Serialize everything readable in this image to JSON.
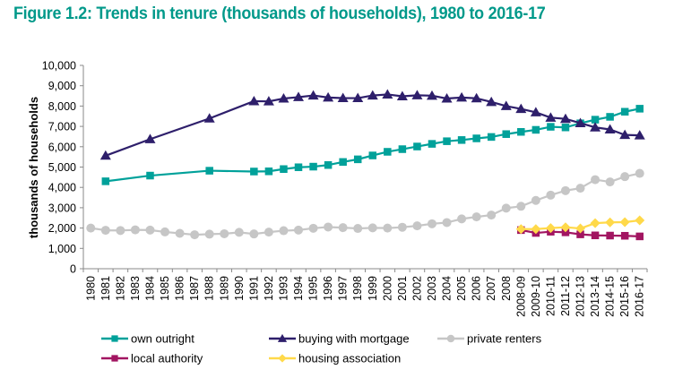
{
  "chart_data": {
    "type": "line",
    "title": "Figure 1.2: Trends in tenure (thousands of households), 1980 to 2016-17",
    "xlabel": "",
    "ylabel": "thousands of households",
    "ylim": [
      0,
      10000
    ],
    "yticks": [
      0,
      1000,
      2000,
      3000,
      4000,
      5000,
      6000,
      7000,
      8000,
      9000,
      10000
    ],
    "ytick_labels": [
      "0",
      "1,000",
      "2,000",
      "3,000",
      "4,000",
      "5,000",
      "6,000",
      "7,000",
      "8,000",
      "9,000",
      "10,000"
    ],
    "grid": false,
    "legend_position": "bottom",
    "categories": [
      "1980",
      "1981",
      "1982",
      "1983",
      "1984",
      "1985",
      "1986",
      "1987",
      "1988",
      "1989",
      "1990",
      "1991",
      "1992",
      "1993",
      "1994",
      "1995",
      "1996",
      "1997",
      "1998",
      "1999",
      "2000",
      "2001",
      "2002",
      "2003",
      "2004",
      "2005",
      "2006",
      "2007",
      "2008",
      "2008-09",
      "2009-10",
      "2010-11",
      "2011-12",
      "2012-13",
      "2013-14",
      "2014-15",
      "2015-16",
      "2016-17"
    ],
    "series": [
      {
        "name": "own outright",
        "color": "#00a19a",
        "marker": "square",
        "values": [
          null,
          4300,
          null,
          null,
          4580,
          null,
          null,
          null,
          4820,
          null,
          null,
          4780,
          4790,
          4900,
          4990,
          5020,
          5100,
          5250,
          5380,
          5570,
          5750,
          5880,
          6010,
          6140,
          6270,
          6330,
          6410,
          6480,
          6620,
          6730,
          6830,
          6980,
          6950,
          7150,
          7330,
          7470,
          7720,
          7870
        ]
      },
      {
        "name": "buying with mortgage",
        "color": "#2e1f6b",
        "marker": "triangle",
        "values": [
          null,
          5560,
          null,
          null,
          6370,
          null,
          null,
          null,
          7390,
          null,
          null,
          8240,
          8230,
          8370,
          8440,
          8520,
          8420,
          8390,
          8390,
          8520,
          8570,
          8480,
          8530,
          8510,
          8370,
          8420,
          8380,
          8200,
          8000,
          7860,
          7690,
          7430,
          7370,
          7160,
          6950,
          6850,
          6580,
          6560
        ]
      },
      {
        "name": "private renters",
        "color": "#c6c6c6",
        "marker": "circle",
        "values": [
          2000,
          1890,
          1880,
          1910,
          1900,
          1810,
          1740,
          1670,
          1700,
          1720,
          1790,
          1710,
          1800,
          1870,
          1900,
          1990,
          2050,
          2020,
          1980,
          2010,
          2000,
          2040,
          2110,
          2210,
          2270,
          2450,
          2550,
          2640,
          2980,
          3070,
          3360,
          3620,
          3840,
          3960,
          4380,
          4270,
          4530,
          4690
        ]
      },
      {
        "name": "local authority",
        "color": "#a21561",
        "marker": "square",
        "values": [
          null,
          null,
          null,
          null,
          null,
          null,
          null,
          null,
          null,
          null,
          null,
          null,
          null,
          null,
          null,
          null,
          null,
          null,
          null,
          null,
          null,
          null,
          null,
          null,
          null,
          null,
          null,
          null,
          null,
          1900,
          1760,
          1820,
          1790,
          1690,
          1640,
          1630,
          1620,
          1590
        ]
      },
      {
        "name": "housing association",
        "color": "#ffd94a",
        "marker": "diamond",
        "values": [
          null,
          null,
          null,
          null,
          null,
          null,
          null,
          null,
          null,
          null,
          null,
          null,
          null,
          null,
          null,
          null,
          null,
          null,
          null,
          null,
          null,
          null,
          null,
          null,
          null,
          null,
          null,
          null,
          null,
          1950,
          1950,
          2000,
          2040,
          1980,
          2240,
          2280,
          2290,
          2380
        ]
      }
    ]
  }
}
